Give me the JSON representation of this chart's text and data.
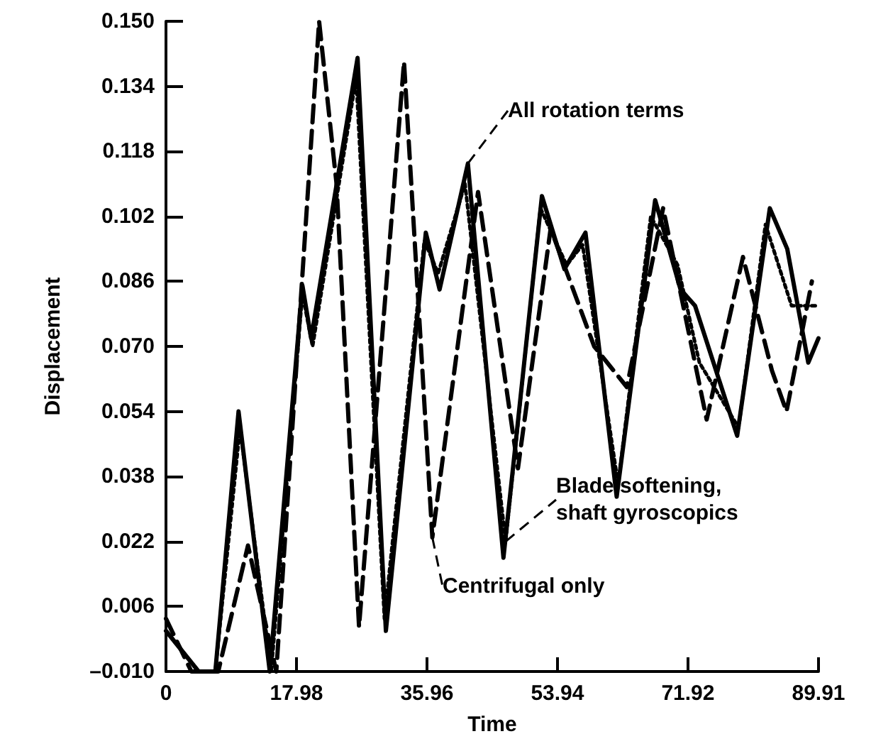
{
  "chart_data": {
    "type": "line",
    "xlabel": "Time",
    "ylabel": "Displacement",
    "xlim": [
      0,
      89.91
    ],
    "xticks": [
      0,
      17.98,
      35.96,
      53.94,
      71.92,
      89.91
    ],
    "ylim": [
      -0.01,
      0.15
    ],
    "yticks": [
      {
        "value": -0.01,
        "label": "–0.010"
      },
      0.006,
      0.022,
      0.038,
      0.054,
      {
        "value": 0.07,
        "label": "0.070"
      },
      0.086,
      0.102,
      0.118,
      0.134,
      {
        "value": 0.15,
        "label": "0.150"
      }
    ],
    "grid": false,
    "legend": false,
    "marker": "none",
    "series": [
      {
        "name": "All rotation terms",
        "color": "#000000",
        "line_style": "solid",
        "x": [
          0,
          4.5,
          6.8,
          10,
          14.3,
          18.8,
          20,
          26.4,
          30.3,
          35.8,
          37.7,
          41.6,
          46.5,
          51.8,
          54.9,
          57.8,
          62.1,
          67.4,
          70.9,
          72.9,
          78.7,
          83.2,
          85.6,
          88.5,
          89.9
        ],
        "values": [
          0.0,
          -0.01,
          -0.01,
          0.054,
          -0.01,
          0.085,
          0.072,
          0.141,
          0.0,
          0.098,
          0.084,
          0.115,
          0.018,
          0.107,
          0.089,
          0.098,
          0.033,
          0.106,
          0.084,
          0.08,
          0.048,
          0.104,
          0.094,
          0.066,
          0.072
        ]
      },
      {
        "name": "Blade softening, shaft gyroscopics",
        "color": "#000000",
        "line_style": "dotted",
        "x": [
          0,
          4.5,
          6.8,
          10.2,
          14.5,
          18.8,
          20.2,
          26.2,
          30.1,
          35.6,
          37.5,
          41.2,
          46.8,
          51.6,
          55.2,
          57.4,
          62.3,
          66.8,
          70.5,
          73.5,
          78.9,
          82.6,
          86.2,
          89.9
        ],
        "values": [
          0.0,
          -0.01,
          -0.01,
          0.05,
          -0.01,
          0.083,
          0.07,
          0.136,
          0.003,
          0.096,
          0.088,
          0.11,
          0.022,
          0.104,
          0.09,
          0.095,
          0.036,
          0.102,
          0.09,
          0.066,
          0.05,
          0.1,
          0.08,
          0.08
        ]
      },
      {
        "name": "Centrifugal only",
        "color": "#000000",
        "line_style": "dashed",
        "x": [
          0,
          3.5,
          7.2,
          11.3,
          15.2,
          21.1,
          23.5,
          26.6,
          32.8,
          36.7,
          43,
          48.5,
          53,
          59,
          63.5,
          68.5,
          74.5,
          79.5,
          83.5,
          85.5,
          89
        ],
        "values": [
          0.003,
          -0.01,
          -0.01,
          0.021,
          -0.01,
          0.15,
          0.11,
          0.001,
          0.14,
          0.023,
          0.108,
          0.04,
          0.099,
          0.07,
          0.06,
          0.104,
          0.052,
          0.092,
          0.064,
          0.054,
          0.086
        ]
      }
    ]
  }
}
